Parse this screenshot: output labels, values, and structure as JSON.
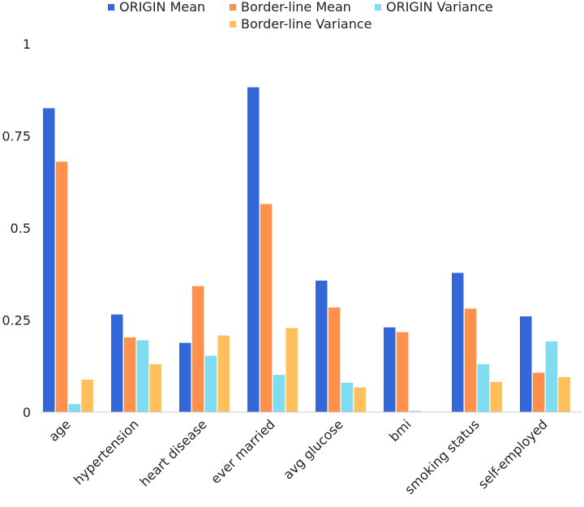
{
  "chart_data": {
    "type": "bar",
    "categories": [
      "age",
      "hypertension",
      "heart disease",
      "ever married",
      "avg glucose",
      "bmi",
      "smoking status",
      "self-employed"
    ],
    "series": [
      {
        "name": "ORIGIN Mean",
        "color": "#3366d6",
        "values": [
          0.825,
          0.265,
          0.188,
          0.882,
          0.357,
          0.23,
          0.378,
          0.26
        ]
      },
      {
        "name": "Border-line Mean",
        "color": "#ff914d",
        "values": [
          0.68,
          0.203,
          0.342,
          0.565,
          0.284,
          0.217,
          0.281,
          0.107
        ]
      },
      {
        "name": "ORIGIN Variance",
        "color": "#80dcf0",
        "values": [
          0.022,
          0.195,
          0.153,
          0.101,
          0.08,
          0.003,
          0.13,
          0.192
        ]
      },
      {
        "name": "Border-line Variance",
        "color": "#ffbf5a",
        "values": [
          0.088,
          0.13,
          0.208,
          0.228,
          0.067,
          0.0,
          0.082,
          0.095
        ]
      }
    ],
    "yticks": [
      {
        "value": 0,
        "label": "0"
      },
      {
        "value": 0.25,
        "label": "0.25"
      },
      {
        "value": 0.5,
        "label": "0.5"
      },
      {
        "value": 0.75,
        "label": "0.75"
      },
      {
        "value": 1,
        "label": "1"
      }
    ],
    "ylim": [
      0,
      1
    ],
    "grid": false,
    "legend_position": "top"
  }
}
